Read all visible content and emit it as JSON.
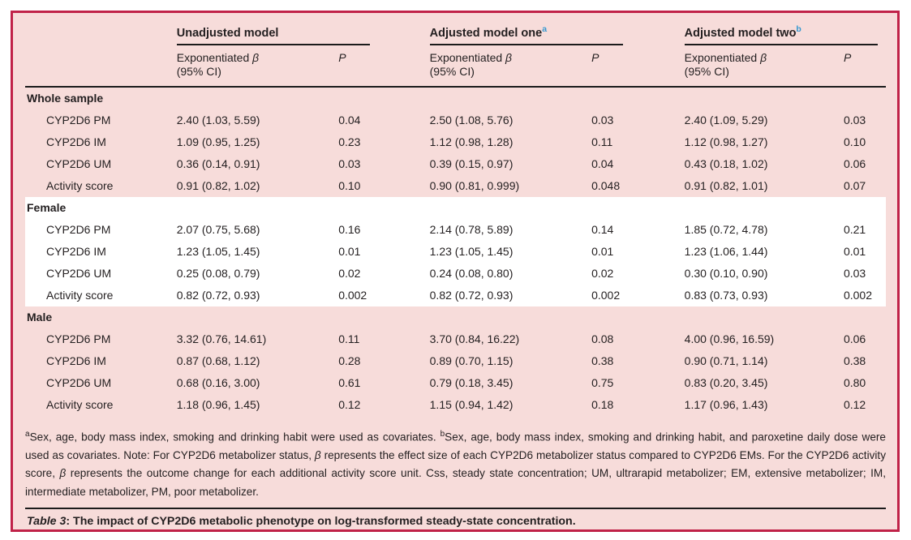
{
  "frame": {
    "background_pink": "#f7dcda",
    "border_color": "#c02248",
    "highlight_band": "#ffffff",
    "rule_color": "#1b1b1b",
    "superscript_color": "#3598d0"
  },
  "header": {
    "models": [
      {
        "label": "Unadjusted model",
        "sup": ""
      },
      {
        "label": "Adjusted model one",
        "sup": "a"
      },
      {
        "label": "Adjusted model two",
        "sup": "b"
      }
    ],
    "sub": {
      "estimate_prefix": "Exponentiated ",
      "beta": "β",
      "ci": "(95% CI)",
      "p": "P"
    }
  },
  "table": {
    "sections": [
      {
        "label": "Whole sample",
        "highlight": false,
        "rows": [
          {
            "label": "CYP2D6 PM",
            "cells": [
              "2.40 (1.03, 5.59)",
              "0.04",
              "2.50 (1.08, 5.76)",
              "0.03",
              "2.40 (1.09, 5.29)",
              "0.03"
            ]
          },
          {
            "label": "CYP2D6 IM",
            "cells": [
              "1.09 (0.95, 1.25)",
              "0.23",
              "1.12 (0.98, 1.28)",
              "0.11",
              "1.12 (0.98, 1.27)",
              "0.10"
            ]
          },
          {
            "label": "CYP2D6 UM",
            "cells": [
              "0.36 (0.14, 0.91)",
              "0.03",
              "0.39 (0.15, 0.97)",
              "0.04",
              "0.43 (0.18, 1.02)",
              "0.06"
            ]
          },
          {
            "label": "Activity score",
            "cells": [
              "0.91 (0.82, 1.02)",
              "0.10",
              "0.90 (0.81, 0.999)",
              "0.048",
              "0.91 (0.82, 1.01)",
              "0.07"
            ]
          }
        ]
      },
      {
        "label": "Female",
        "highlight": true,
        "rows": [
          {
            "label": "CYP2D6 PM",
            "cells": [
              "2.07 (0.75, 5.68)",
              "0.16",
              "2.14 (0.78, 5.89)",
              "0.14",
              "1.85 (0.72, 4.78)",
              "0.21"
            ]
          },
          {
            "label": "CYP2D6 IM",
            "cells": [
              "1.23 (1.05, 1.45)",
              "0.01",
              "1.23 (1.05, 1.45)",
              "0.01",
              "1.23 (1.06, 1.44)",
              "0.01"
            ]
          },
          {
            "label": "CYP2D6 UM",
            "cells": [
              "0.25 (0.08, 0.79)",
              "0.02",
              "0.24 (0.08, 0.80)",
              "0.02",
              "0.30 (0.10, 0.90)",
              "0.03"
            ]
          },
          {
            "label": "Activity score",
            "cells": [
              "0.82 (0.72, 0.93)",
              "0.002",
              "0.82 (0.72, 0.93)",
              "0.002",
              "0.83 (0.73, 0.93)",
              "0.002"
            ]
          }
        ]
      },
      {
        "label": "Male",
        "highlight": false,
        "rows": [
          {
            "label": "CYP2D6 PM",
            "cells": [
              "3.32 (0.76, 14.61)",
              "0.11",
              "3.70 (0.84, 16.22)",
              "0.08",
              "4.00 (0.96, 16.59)",
              "0.06"
            ]
          },
          {
            "label": "CYP2D6 IM",
            "cells": [
              "0.87 (0.68, 1.12)",
              "0.28",
              "0.89 (0.70, 1.15)",
              "0.38",
              "0.90 (0.71, 1.14)",
              "0.38"
            ]
          },
          {
            "label": "CYP2D6 UM",
            "cells": [
              "0.68 (0.16, 3.00)",
              "0.61",
              "0.79 (0.18, 3.45)",
              "0.75",
              "0.83 (0.20, 3.45)",
              "0.80"
            ]
          },
          {
            "label": "Activity score",
            "cells": [
              "1.18 (0.96, 1.45)",
              "0.12",
              "1.15 (0.94, 1.42)",
              "0.18",
              "1.17 (0.96, 1.43)",
              "0.12"
            ]
          }
        ]
      }
    ]
  },
  "footnote": {
    "segments": [
      {
        "text": "a",
        "sup": true
      },
      {
        "text": "Sex, age, body mass index, smoking and drinking habit were used as covariates. "
      },
      {
        "text": "b",
        "sup": true
      },
      {
        "text": "Sex, age, body mass index, smoking and drinking habit, and paroxetine daily dose were used as covariates. Note: For CYP2D6 metabolizer status, "
      },
      {
        "text": "β",
        "italic": true
      },
      {
        "text": " represents the effect size of each CYP2D6 metabolizer status compared to CYP2D6 EMs. For the CYP2D6 activity score, "
      },
      {
        "text": "β",
        "italic": true
      },
      {
        "text": " represents the outcome change for each additional activity score unit. Css, steady state concentration; UM, ultrarapid metabolizer; EM, extensive metabolizer; IM, intermediate metabolizer, PM, poor metabolizer."
      }
    ]
  },
  "caption": {
    "label": "Table 3",
    "separator": ": ",
    "text": "The impact of CYP2D6 metabolic phenotype on log-transformed steady-state concentration."
  }
}
